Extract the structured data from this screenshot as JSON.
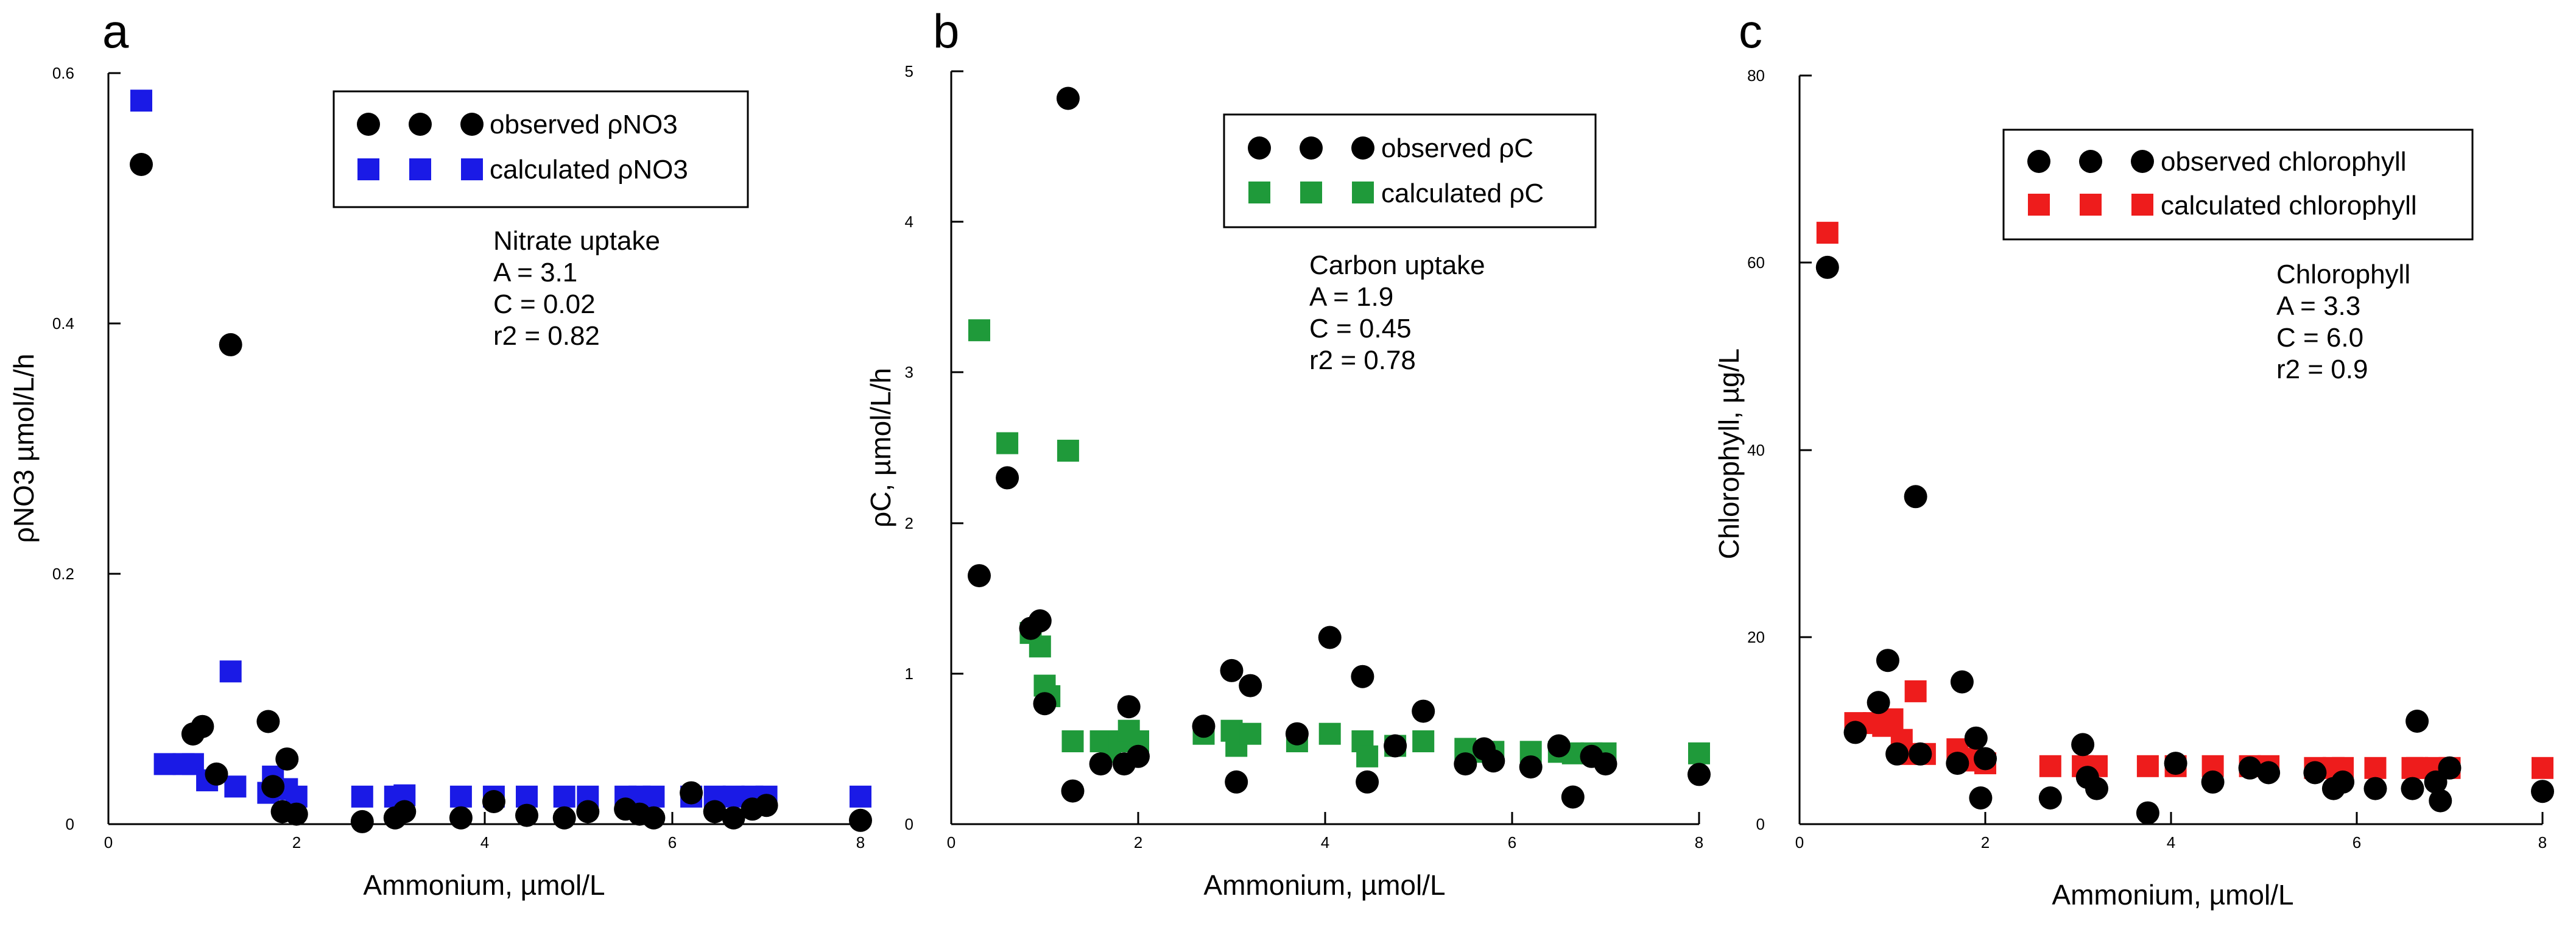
{
  "figure_title": "",
  "chart_data": [
    {
      "type": "scatter",
      "panel_label": "a",
      "title": "",
      "xlabel": "Ammonium, µmol/L",
      "ylabel": "ρNO3 µmol/L/h",
      "xlim": [
        0,
        8
      ],
      "ylim": [
        0,
        0.6
      ],
      "xticks": [
        "0",
        "2",
        "4",
        "6",
        "8"
      ],
      "yticks": [
        "0",
        "0.2",
        "0.4",
        "0.6"
      ],
      "grid": false,
      "legend_position": "top-right",
      "marker_colors": {
        "observed": "#000000",
        "calculated": "#1a1ae6"
      },
      "series": [
        {
          "name": "observed ρNO3",
          "marker": "circle",
          "points": [
            [
              0.35,
              0.527
            ],
            [
              0.9,
              0.072
            ],
            [
              1.0,
              0.078
            ],
            [
              1.15,
              0.04
            ],
            [
              1.3,
              0.383
            ],
            [
              1.7,
              0.082
            ],
            [
              1.75,
              0.03
            ],
            [
              1.9,
              0.052
            ],
            [
              1.85,
              0.01
            ],
            [
              2.0,
              0.008
            ],
            [
              2.7,
              0.002
            ],
            [
              3.05,
              0.005
            ],
            [
              3.15,
              0.01
            ],
            [
              3.75,
              0.005
            ],
            [
              4.1,
              0.018
            ],
            [
              4.45,
              0.007
            ],
            [
              4.85,
              0.005
            ],
            [
              5.1,
              0.01
            ],
            [
              5.5,
              0.012
            ],
            [
              5.65,
              0.008
            ],
            [
              5.8,
              0.005
            ],
            [
              6.2,
              0.025
            ],
            [
              6.45,
              0.01
            ],
            [
              6.65,
              0.005
            ],
            [
              6.85,
              0.012
            ],
            [
              7.0,
              0.015
            ],
            [
              8.0,
              0.003
            ]
          ]
        },
        {
          "name": "calculated ρNO3",
          "marker": "square",
          "points": [
            [
              0.35,
              0.578
            ],
            [
              0.6,
              0.048
            ],
            [
              0.8,
              0.048
            ],
            [
              0.9,
              0.048
            ],
            [
              1.05,
              0.035
            ],
            [
              1.3,
              0.122
            ],
            [
              1.35,
              0.03
            ],
            [
              1.7,
              0.025
            ],
            [
              1.75,
              0.038
            ],
            [
              1.9,
              0.028
            ],
            [
              2.0,
              0.022
            ],
            [
              2.7,
              0.022
            ],
            [
              3.05,
              0.022
            ],
            [
              3.15,
              0.023
            ],
            [
              3.75,
              0.022
            ],
            [
              4.1,
              0.022
            ],
            [
              4.45,
              0.022
            ],
            [
              4.85,
              0.022
            ],
            [
              5.1,
              0.022
            ],
            [
              5.5,
              0.022
            ],
            [
              5.65,
              0.022
            ],
            [
              5.8,
              0.022
            ],
            [
              6.2,
              0.022
            ],
            [
              6.45,
              0.022
            ],
            [
              6.65,
              0.022
            ],
            [
              6.85,
              0.022
            ],
            [
              7.0,
              0.022
            ],
            [
              8.0,
              0.022
            ]
          ]
        }
      ],
      "annotation": [
        "Nitrate uptake",
        "A = 3.1",
        "C = 0.02",
        "r2 = 0.82"
      ]
    },
    {
      "type": "scatter",
      "panel_label": "b",
      "title": "",
      "xlabel": "Ammonium, µmol/L",
      "ylabel": "ρC,  µmol/L/h",
      "xlim": [
        0,
        8
      ],
      "ylim": [
        0,
        5
      ],
      "xticks": [
        "0",
        "2",
        "4",
        "6",
        "8"
      ],
      "yticks": [
        "0",
        "1",
        "2",
        "3",
        "4",
        "5"
      ],
      "grid": false,
      "legend_position": "top-right",
      "marker_colors": {
        "observed": "#000000",
        "calculated": "#1f9a3a"
      },
      "series": [
        {
          "name": "observed ρC",
          "marker": "circle",
          "points": [
            [
              0.3,
              1.65
            ],
            [
              0.6,
              2.3
            ],
            [
              0.85,
              1.3
            ],
            [
              0.95,
              1.35
            ],
            [
              1.0,
              0.8
            ],
            [
              1.25,
              4.82
            ],
            [
              1.3,
              0.22
            ],
            [
              1.6,
              0.4
            ],
            [
              1.85,
              0.4
            ],
            [
              1.9,
              0.78
            ],
            [
              2.0,
              0.45
            ],
            [
              2.7,
              0.65
            ],
            [
              3.0,
              1.02
            ],
            [
              3.05,
              0.28
            ],
            [
              3.2,
              0.92
            ],
            [
              3.7,
              0.6
            ],
            [
              4.05,
              1.24
            ],
            [
              4.4,
              0.98
            ],
            [
              4.45,
              0.28
            ],
            [
              4.75,
              0.52
            ],
            [
              5.05,
              0.75
            ],
            [
              5.5,
              0.4
            ],
            [
              5.7,
              0.5
            ],
            [
              5.8,
              0.42
            ],
            [
              6.2,
              0.38
            ],
            [
              6.5,
              0.52
            ],
            [
              6.65,
              0.18
            ],
            [
              6.85,
              0.45
            ],
            [
              7.0,
              0.4
            ],
            [
              8.0,
              0.33
            ]
          ]
        },
        {
          "name": "calculated ρC",
          "marker": "square",
          "points": [
            [
              0.3,
              3.28
            ],
            [
              0.6,
              2.53
            ],
            [
              0.85,
              1.27
            ],
            [
              0.95,
              1.18
            ],
            [
              1.0,
              0.92
            ],
            [
              1.05,
              0.85
            ],
            [
              1.25,
              2.48
            ],
            [
              1.3,
              0.55
            ],
            [
              1.6,
              0.55
            ],
            [
              1.7,
              0.48
            ],
            [
              1.8,
              0.55
            ],
            [
              1.9,
              0.62
            ],
            [
              2.0,
              0.55
            ],
            [
              2.7,
              0.6
            ],
            [
              3.0,
              0.62
            ],
            [
              3.05,
              0.52
            ],
            [
              3.2,
              0.6
            ],
            [
              3.7,
              0.55
            ],
            [
              4.05,
              0.6
            ],
            [
              4.4,
              0.55
            ],
            [
              4.45,
              0.45
            ],
            [
              4.75,
              0.52
            ],
            [
              5.05,
              0.55
            ],
            [
              5.5,
              0.5
            ],
            [
              5.7,
              0.48
            ],
            [
              5.8,
              0.48
            ],
            [
              6.2,
              0.48
            ],
            [
              6.5,
              0.48
            ],
            [
              6.65,
              0.47
            ],
            [
              6.85,
              0.47
            ],
            [
              7.0,
              0.47
            ],
            [
              8.0,
              0.47
            ]
          ]
        }
      ],
      "annotation": [
        "Carbon uptake",
        "A = 1.9",
        "C = 0.45",
        "r2 = 0.78"
      ]
    },
    {
      "type": "scatter",
      "panel_label": "c",
      "title": "",
      "xlabel": "Ammonium, µmol/L",
      "ylabel": "Chlorophyll, µg/L",
      "xlim": [
        0,
        8
      ],
      "ylim": [
        0,
        80
      ],
      "xticks": [
        "0",
        "2",
        "4",
        "6",
        "8"
      ],
      "yticks": [
        "0",
        "20",
        "40",
        "60",
        "80"
      ],
      "grid": false,
      "legend_position": "top-right",
      "marker_colors": {
        "observed": "#000000",
        "calculated": "#ee1c1c"
      },
      "series": [
        {
          "name": "observed chlorophyll",
          "marker": "circle",
          "points": [
            [
              0.3,
              59.5
            ],
            [
              0.6,
              9.8
            ],
            [
              0.85,
              13.0
            ],
            [
              0.95,
              17.5
            ],
            [
              1.05,
              7.5
            ],
            [
              1.25,
              35.0
            ],
            [
              1.3,
              7.5
            ],
            [
              1.7,
              6.5
            ],
            [
              1.75,
              15.2
            ],
            [
              1.9,
              9.2
            ],
            [
              1.95,
              2.8
            ],
            [
              2.0,
              7.0
            ],
            [
              2.7,
              2.8
            ],
            [
              3.05,
              8.5
            ],
            [
              3.1,
              5.0
            ],
            [
              3.2,
              3.8
            ],
            [
              3.75,
              1.2
            ],
            [
              4.05,
              6.5
            ],
            [
              4.45,
              4.5
            ],
            [
              4.85,
              6.0
            ],
            [
              5.05,
              5.5
            ],
            [
              5.55,
              5.5
            ],
            [
              5.75,
              3.8
            ],
            [
              5.85,
              4.5
            ],
            [
              6.2,
              3.8
            ],
            [
              6.6,
              3.8
            ],
            [
              6.65,
              11.0
            ],
            [
              6.85,
              4.5
            ],
            [
              6.9,
              2.5
            ],
            [
              7.0,
              6.0
            ],
            [
              8.0,
              3.5
            ]
          ]
        },
        {
          "name": "calculated chlorophyll",
          "marker": "square",
          "points": [
            [
              0.3,
              63.2
            ],
            [
              0.6,
              10.8
            ],
            [
              0.8,
              10.8
            ],
            [
              0.9,
              10.5
            ],
            [
              1.0,
              11.2
            ],
            [
              1.1,
              9.0
            ],
            [
              1.2,
              7.5
            ],
            [
              1.25,
              14.2
            ],
            [
              1.35,
              7.5
            ],
            [
              1.7,
              8.0
            ],
            [
              1.8,
              7.0
            ],
            [
              1.9,
              6.8
            ],
            [
              2.0,
              6.5
            ],
            [
              2.7,
              6.2
            ],
            [
              3.05,
              6.2
            ],
            [
              3.2,
              6.2
            ],
            [
              3.75,
              6.2
            ],
            [
              4.05,
              6.2
            ],
            [
              4.45,
              6.2
            ],
            [
              4.85,
              6.2
            ],
            [
              5.05,
              6.2
            ],
            [
              5.55,
              6.0
            ],
            [
              5.75,
              6.0
            ],
            [
              5.85,
              6.0
            ],
            [
              6.2,
              6.0
            ],
            [
              6.6,
              6.0
            ],
            [
              6.65,
              6.0
            ],
            [
              6.85,
              6.0
            ],
            [
              7.0,
              6.0
            ],
            [
              8.0,
              6.0
            ]
          ]
        }
      ],
      "annotation": [
        "Chlorophyll",
        "A = 3.3",
        "C = 6.0",
        "r2 = 0.9"
      ]
    }
  ]
}
